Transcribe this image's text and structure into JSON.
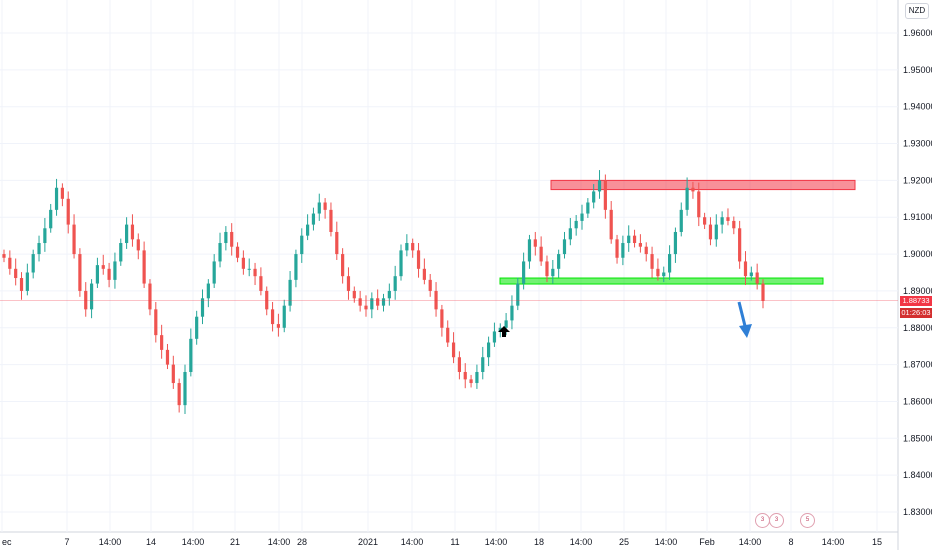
{
  "chart_data": {
    "type": "candlestick",
    "currency": "NZD",
    "ylim": [
      1.825,
      1.965
    ],
    "y_ticks": [
      "1.96000",
      "1.95000",
      "1.94000",
      "1.93000",
      "1.92000",
      "1.91000",
      "1.90000",
      "1.89000",
      "1.88000",
      "1.87000",
      "1.86000",
      "1.85000",
      "1.84000",
      "1.83000"
    ],
    "x_ticks": [
      "ec",
      "7",
      "14:00",
      "14",
      "14:00",
      "21",
      "14:00",
      "28",
      "2021",
      "14:00",
      "11",
      "14:00",
      "18",
      "14:00",
      "25",
      "14:00",
      "Feb",
      "14:00",
      "8",
      "14:00",
      "15"
    ],
    "last_price": "1.88733",
    "countdown": "01:26:03",
    "zones": [
      {
        "name": "resistance",
        "from": 1.9175,
        "to": 1.92,
        "color": "#f23645"
      },
      {
        "name": "support",
        "from": 1.892,
        "to": 1.8935,
        "color": "#00e600"
      }
    ],
    "closes": [
      1.899,
      1.896,
      1.8935,
      1.89,
      1.895,
      1.9,
      1.903,
      1.907,
      1.912,
      1.918,
      1.915,
      1.908,
      1.9,
      1.89,
      1.885,
      1.892,
      1.897,
      1.896,
      1.893,
      1.898,
      1.903,
      1.908,
      1.904,
      1.901,
      1.892,
      1.885,
      1.878,
      1.874,
      1.87,
      1.865,
      1.859,
      1.868,
      1.877,
      1.883,
      1.888,
      1.892,
      1.898,
      1.903,
      1.906,
      1.902,
      1.899,
      1.896,
      1.896,
      1.894,
      1.89,
      1.885,
      1.881,
      1.88,
      1.886,
      1.893,
      1.9,
      1.905,
      1.908,
      1.911,
      1.914,
      1.912,
      1.906,
      1.9,
      1.894,
      1.89,
      1.888,
      1.886,
      1.885,
      1.888,
      1.886,
      1.888,
      1.89,
      1.894,
      1.901,
      1.903,
      1.901,
      1.896,
      1.893,
      1.89,
      1.885,
      1.88,
      1.876,
      1.872,
      1.868,
      1.866,
      1.865,
      1.868,
      1.872,
      1.876,
      1.879,
      1.88,
      1.882,
      1.886,
      1.892,
      1.898,
      1.904,
      1.902,
      1.898,
      1.894,
      1.896,
      1.9,
      1.904,
      1.907,
      1.909,
      1.911,
      1.914,
      1.917,
      1.92,
      1.912,
      1.904,
      1.899,
      1.903,
      1.905,
      1.903,
      1.902,
      1.9,
      1.896,
      1.894,
      1.895,
      1.9,
      1.906,
      1.912,
      1.918,
      1.917,
      1.91,
      1.908,
      1.904,
      1.908,
      1.91,
      1.909,
      1.907,
      1.898,
      1.894,
      1.895,
      1.892,
      1.8873
    ],
    "drawings": [
      {
        "name": "up-arrow",
        "color": "#000000"
      },
      {
        "name": "down-arrow",
        "color": "#2f7fd6"
      }
    ],
    "event_markers": [
      "3",
      "3",
      "5"
    ],
    "colors": {
      "up": "#26a69a",
      "down": "#ef5350",
      "grid": "#f0f3fa",
      "price_line": "#f23645"
    }
  }
}
